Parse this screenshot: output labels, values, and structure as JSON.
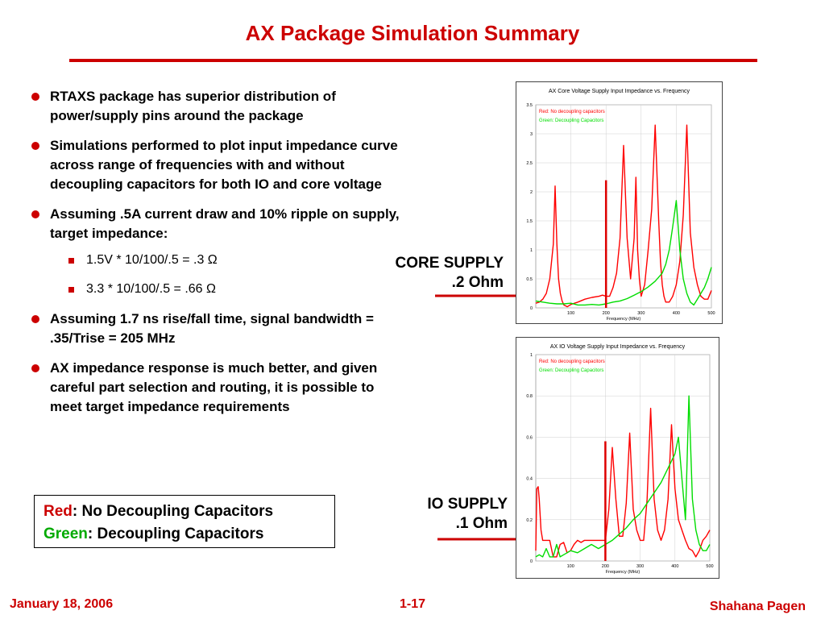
{
  "slide": {
    "title": "AX Package Simulation Summary",
    "bullets": [
      "RTAXS package has superior distribution of power/supply pins around the package",
      "Simulations performed to plot input impedance curve across range of frequencies with and without decoupling capacitors for both IO and core voltage",
      "Assuming .5A current draw and 10% ripple on supply, target impedance:",
      "Assuming 1.7 ns rise/fall time, signal bandwidth = .35/Trise = 205 MHz",
      "AX impedance response is much better, and given careful part selection and routing, it is possible to meet target impedance requirements"
    ],
    "sub_bullets": [
      "1.5V * 10/100/.5 = .3 Ω",
      "3.3 * 10/100/.5 =  .66 Ω"
    ],
    "legend": {
      "red_word": "Red",
      "red_text": ": No Decoupling Capacitors",
      "green_word": "Green",
      "green_text": ": Decoupling Capacitors"
    },
    "core_label": {
      "line1": "CORE SUPPLY",
      "line2": ".2 Ohm"
    },
    "io_label": {
      "line1": "IO SUPPLY",
      "line2": ".1 Ohm"
    },
    "footer": {
      "date": "January 18, 2006",
      "page": "1-17",
      "author": "Shahana Pagen"
    },
    "colors": {
      "accent": "#cc0000",
      "green": "#00aa00"
    }
  },
  "chart_data": [
    {
      "type": "line",
      "title": "AX Core Voltage Supply Input Impedance vs. Frequency",
      "xlabel": "Frequency (MHz)",
      "ylabel": "",
      "xlim": [
        0,
        500
      ],
      "ylim": [
        0,
        3.5
      ],
      "xticks": [
        100,
        200,
        300,
        400,
        500
      ],
      "yticks": [
        0,
        0.5,
        1,
        1.5,
        2,
        2.5,
        3,
        3.5
      ],
      "ytick_labels": [
        "0",
        "0.5",
        "1",
        "1.5",
        "2",
        "2.5",
        "3",
        "3.5"
      ],
      "grid": true,
      "legend_position": "top-left",
      "marker": {
        "x": 200,
        "y": 2.2
      },
      "series": [
        {
          "name": "Red: No decoupling capacitors",
          "color": "#ff0000",
          "x": [
            0,
            10,
            20,
            30,
            40,
            50,
            55,
            60,
            65,
            70,
            75,
            80,
            90,
            100,
            120,
            140,
            160,
            180,
            190,
            200,
            210,
            220,
            230,
            240,
            250,
            260,
            270,
            280,
            285,
            290,
            295,
            300,
            310,
            320,
            330,
            340,
            350,
            355,
            360,
            365,
            370,
            380,
            390,
            400,
            410,
            420,
            430,
            440,
            450,
            460,
            470,
            480,
            490,
            500
          ],
          "y": [
            0.08,
            0.1,
            0.15,
            0.25,
            0.5,
            1.1,
            2.1,
            1.1,
            0.5,
            0.25,
            0.12,
            0.05,
            0.02,
            0.06,
            0.1,
            0.15,
            0.18,
            0.2,
            0.22,
            0.2,
            0.2,
            0.35,
            0.6,
            1.2,
            2.8,
            1.2,
            0.5,
            1.2,
            2.25,
            1.0,
            0.5,
            0.2,
            0.4,
            1.0,
            1.7,
            3.15,
            1.5,
            0.8,
            0.4,
            0.2,
            0.1,
            0.1,
            0.2,
            0.4,
            0.8,
            1.6,
            3.15,
            1.3,
            0.7,
            0.4,
            0.2,
            0.15,
            0.15,
            0.3
          ]
        },
        {
          "name": "Green: Decoupling Capacitors",
          "color": "#00dd00",
          "x": [
            0,
            20,
            40,
            60,
            80,
            100,
            120,
            140,
            160,
            180,
            200,
            220,
            240,
            260,
            280,
            300,
            320,
            340,
            360,
            370,
            380,
            390,
            400,
            410,
            420,
            430,
            440,
            450,
            460,
            470,
            480,
            490,
            500
          ],
          "y": [
            0.12,
            0.1,
            0.08,
            0.07,
            0.07,
            0.08,
            0.05,
            0.05,
            0.06,
            0.05,
            0.07,
            0.1,
            0.12,
            0.16,
            0.22,
            0.28,
            0.36,
            0.46,
            0.6,
            0.75,
            1.0,
            1.4,
            1.85,
            1.0,
            0.5,
            0.25,
            0.1,
            0.05,
            0.15,
            0.25,
            0.35,
            0.5,
            0.7
          ]
        }
      ]
    },
    {
      "type": "line",
      "title": "AX IO Voltage Supply Input Impedance vs. Frequency",
      "xlabel": "Frequency (MHz)",
      "ylabel": "",
      "xlim": [
        0,
        500
      ],
      "ylim": [
        0,
        1
      ],
      "xticks": [
        100,
        200,
        300,
        400,
        500
      ],
      "yticks": [
        0,
        0.2,
        0.4,
        0.6,
        0.8,
        1
      ],
      "ytick_labels": [
        "0",
        "0.2",
        "0.4",
        "0.6",
        "0.8",
        "1"
      ],
      "grid": true,
      "legend_position": "top-left",
      "marker": {
        "x": 200,
        "y": 0.58
      },
      "series": [
        {
          "name": "Red: No decoupling capacitors",
          "color": "#ff0000",
          "x": [
            0,
            3,
            7,
            10,
            15,
            20,
            30,
            40,
            50,
            60,
            70,
            80,
            90,
            100,
            110,
            120,
            130,
            140,
            150,
            160,
            170,
            180,
            190,
            200,
            210,
            220,
            230,
            240,
            250,
            260,
            270,
            280,
            290,
            300,
            310,
            320,
            330,
            340,
            350,
            360,
            370,
            380,
            390,
            400,
            410,
            420,
            430,
            440,
            450,
            460,
            470,
            480,
            490,
            500
          ],
          "y": [
            0.05,
            0.35,
            0.36,
            0.3,
            0.15,
            0.1,
            0.1,
            0.1,
            0.02,
            0.02,
            0.08,
            0.09,
            0.04,
            0.05,
            0.08,
            0.1,
            0.09,
            0.1,
            0.1,
            0.1,
            0.1,
            0.1,
            0.1,
            0.1,
            0.25,
            0.55,
            0.3,
            0.12,
            0.12,
            0.28,
            0.62,
            0.25,
            0.15,
            0.1,
            0.1,
            0.3,
            0.74,
            0.3,
            0.15,
            0.1,
            0.15,
            0.3,
            0.66,
            0.35,
            0.2,
            0.15,
            0.1,
            0.06,
            0.05,
            0.02,
            0.05,
            0.1,
            0.12,
            0.15
          ]
        },
        {
          "name": "Green: Decoupling Capacitors",
          "color": "#00dd00",
          "x": [
            0,
            10,
            20,
            30,
            40,
            50,
            60,
            70,
            80,
            90,
            100,
            120,
            140,
            160,
            180,
            200,
            220,
            240,
            260,
            280,
            300,
            320,
            340,
            360,
            380,
            400,
            410,
            420,
            430,
            440,
            450,
            460,
            470,
            480,
            490,
            500
          ],
          "y": [
            0.02,
            0.03,
            0.02,
            0.06,
            0.02,
            0.02,
            0.08,
            0.02,
            0.03,
            0.04,
            0.05,
            0.04,
            0.06,
            0.08,
            0.06,
            0.08,
            0.1,
            0.13,
            0.16,
            0.2,
            0.23,
            0.28,
            0.33,
            0.38,
            0.45,
            0.52,
            0.6,
            0.4,
            0.2,
            0.8,
            0.3,
            0.15,
            0.08,
            0.05,
            0.05,
            0.08
          ]
        }
      ]
    }
  ]
}
